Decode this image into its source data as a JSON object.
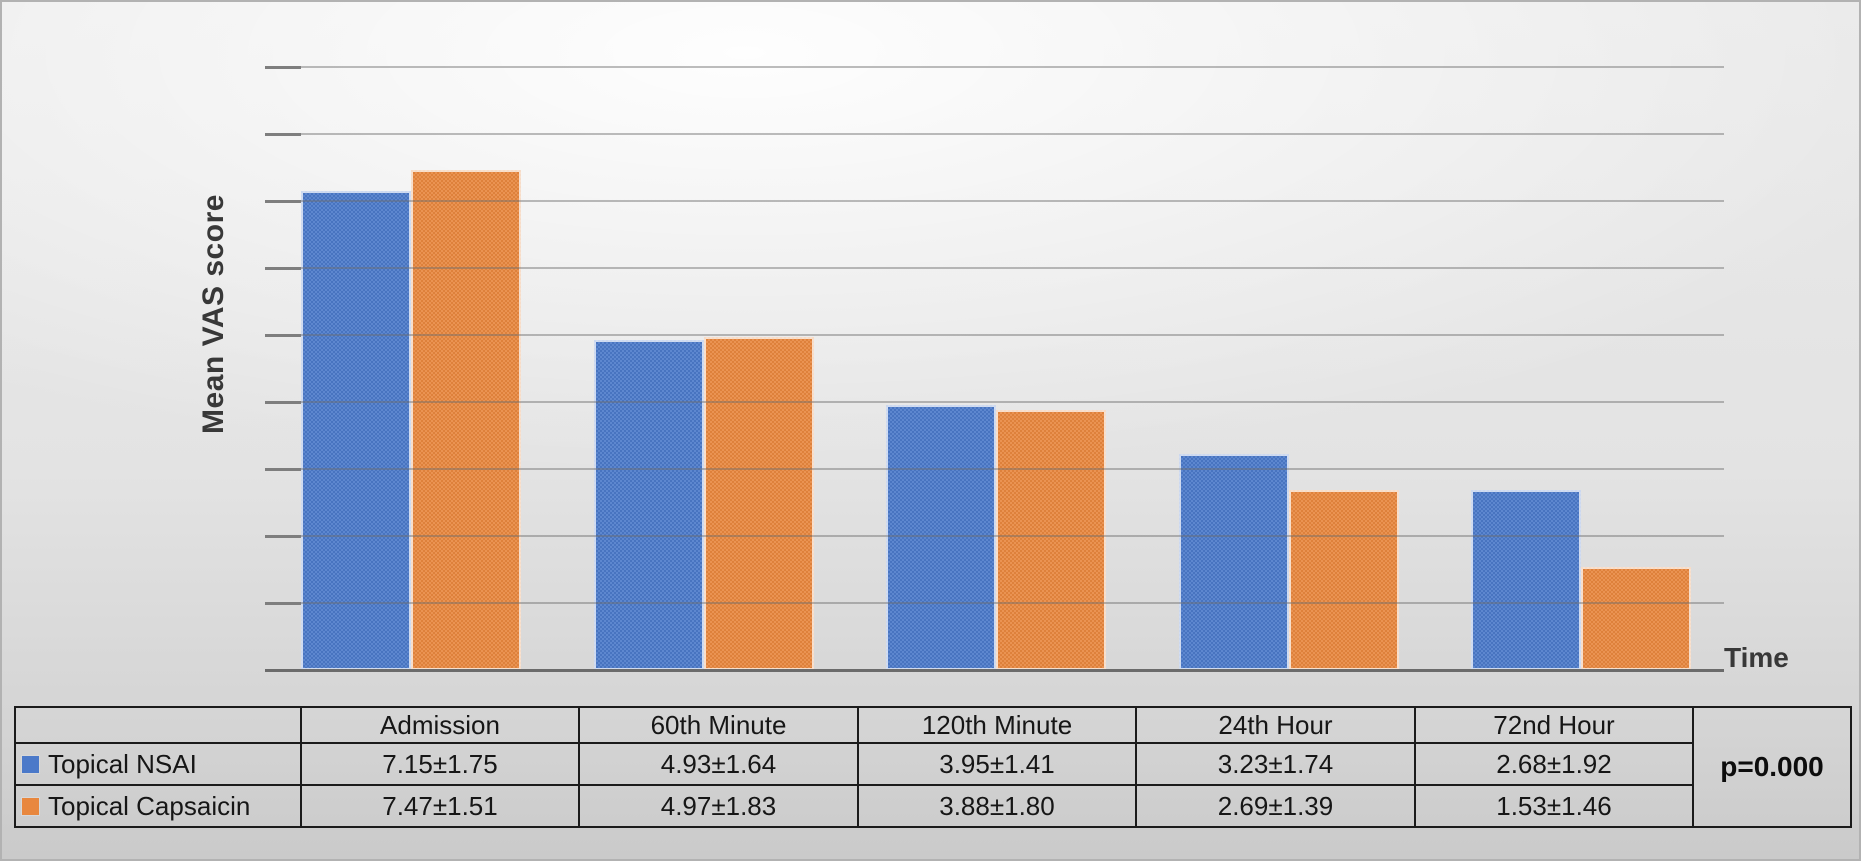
{
  "chart": {
    "y_axis_label": "Mean VAS score",
    "x_axis_label": "Time"
  },
  "chart_data": {
    "type": "bar",
    "title": "",
    "categories": [
      "Admission",
      "60th Minute",
      "120th Minute",
      "24th Hour",
      "72nd Hour"
    ],
    "series": [
      {
        "name": "Topical NSAI",
        "color": "#4b79c9",
        "values": [
          7.15,
          4.93,
          3.95,
          3.23,
          2.68
        ],
        "sd": [
          1.75,
          1.64,
          1.41,
          1.74,
          1.92
        ]
      },
      {
        "name": "Topical Capsaicin",
        "color": "#e8873e",
        "values": [
          7.47,
          4.97,
          3.88,
          2.69,
          1.53
        ],
        "sd": [
          1.51,
          1.83,
          1.8,
          1.39,
          1.46
        ]
      }
    ],
    "xlabel": "Time",
    "ylabel": "Mean VAS score",
    "ylim": [
      0,
      9
    ],
    "grid": true,
    "gridline_step": 1,
    "y_tick_labels_visible": false,
    "legend_position": "table-below",
    "annotation": "p=0.000"
  },
  "table": {
    "columns": [
      "Admission",
      "60th Minute",
      "120th Minute",
      "24th Hour",
      "72nd Hour"
    ],
    "rows": [
      {
        "label": "Topical NSAI",
        "values": [
          "7.15±1.75",
          "4.93±1.64",
          "3.95±1.41",
          "3.23±1.74",
          "2.68±1.92"
        ]
      },
      {
        "label": "Topical Capsaicin",
        "values": [
          "7.47±1.51",
          "4.97±1.83",
          "3.88±1.80",
          "2.69±1.39",
          "1.53±1.46"
        ]
      }
    ],
    "p_value": "p=0.000"
  }
}
